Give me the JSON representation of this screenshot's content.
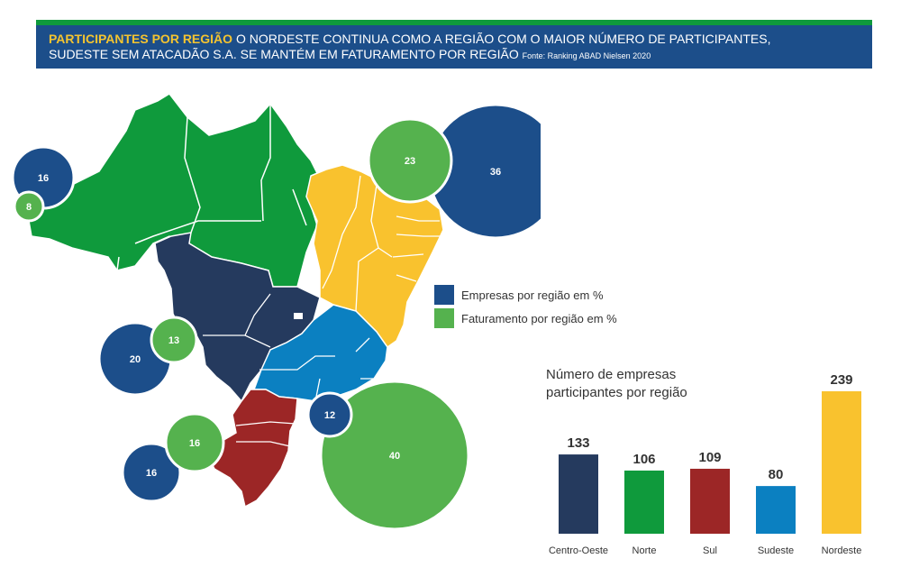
{
  "header": {
    "highlight": "PARTICIPANTES POR REGIÃO",
    "line1": "O NORDESTE CONTINUA COMO A REGIÃO COM O MAIOR NÚMERO DE PARTICIPANTES,",
    "line2": "SUDESTE SEM ATACADÃO S.A. SE MANTÉM EM FATURAMENTO POR REGIÃO",
    "source": "Fonte: Ranking ABAD Nielsen 2020"
  },
  "legend": {
    "empresas": "Empresas por região em %",
    "faturamento": "Faturamento por região em %"
  },
  "colors": {
    "empresas": "#1c4e8a",
    "faturamento": "#55b24e",
    "centro_oeste": "#253a5e",
    "norte": "#0f9a3c",
    "sul": "#9c2626",
    "sudeste": "#0b80c1",
    "nordeste": "#f9c22e"
  },
  "bubbles": {
    "norte_empresas": "16",
    "norte_faturamento": "8",
    "nordeste_faturamento": "23",
    "nordeste_empresas": "36",
    "centro_oeste_empresas": "20",
    "centro_oeste_faturamento": "13",
    "sul_faturamento": "16",
    "sul_empresas": "16",
    "sudeste_empresas": "12",
    "sudeste_faturamento": "40"
  },
  "chart_data": {
    "type": "bar",
    "title": "Número de empresas participantes por região",
    "categories": [
      "Centro-Oeste",
      "Norte",
      "Sul",
      "Sudeste",
      "Nordeste"
    ],
    "values": [
      133,
      106,
      109,
      80,
      239
    ],
    "colors": [
      "#253a5e",
      "#0f9a3c",
      "#9c2626",
      "#0b80c1",
      "#f9c22e"
    ]
  }
}
